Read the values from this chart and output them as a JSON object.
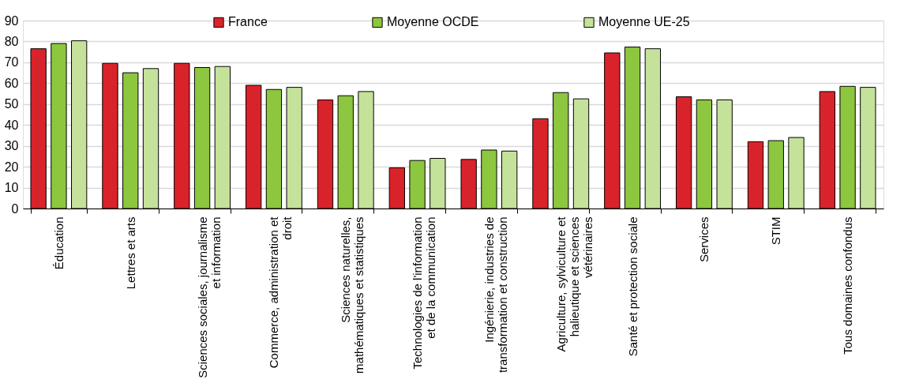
{
  "chart_data": {
    "type": "bar",
    "categories": [
      "Éducation",
      "Lettres et arts",
      "Sciences sociales, journalisme et information",
      "Commerce, administration et droit",
      "Sciences naturelles, mathématiques et statistiques",
      "Technologies de l'information et de la communication",
      "Ingénierie, industries de transformation et construction",
      "Agriculture, sylviculture et halieutique et sciences vétérinaires",
      "Santé et protection sociale",
      "Services",
      "STIM",
      "Tous domaines confondus"
    ],
    "series": [
      {
        "name": "France",
        "color": "#d9232a",
        "values": [
          76.5,
          69.5,
          69.5,
          59,
          52,
          19.5,
          23.5,
          43,
          74.5,
          53.5,
          32,
          56
        ]
      },
      {
        "name": "Moyenne OCDE",
        "color": "#8dc63f",
        "values": [
          79,
          65,
          67.5,
          57,
          54,
          23,
          28,
          55.5,
          77.3,
          52,
          32.5,
          58.5
        ]
      },
      {
        "name": "Moyenne UE-25",
        "color": "#c5e29b",
        "values": [
          80.3,
          67,
          68,
          58,
          56,
          24,
          27.5,
          52.5,
          76.5,
          52,
          34,
          58
        ]
      }
    ],
    "ylim": [
      0,
      90
    ],
    "yticks": [
      0,
      10,
      20,
      30,
      40,
      50,
      60,
      70,
      80,
      90
    ],
    "grid": "y",
    "legend": "top"
  }
}
